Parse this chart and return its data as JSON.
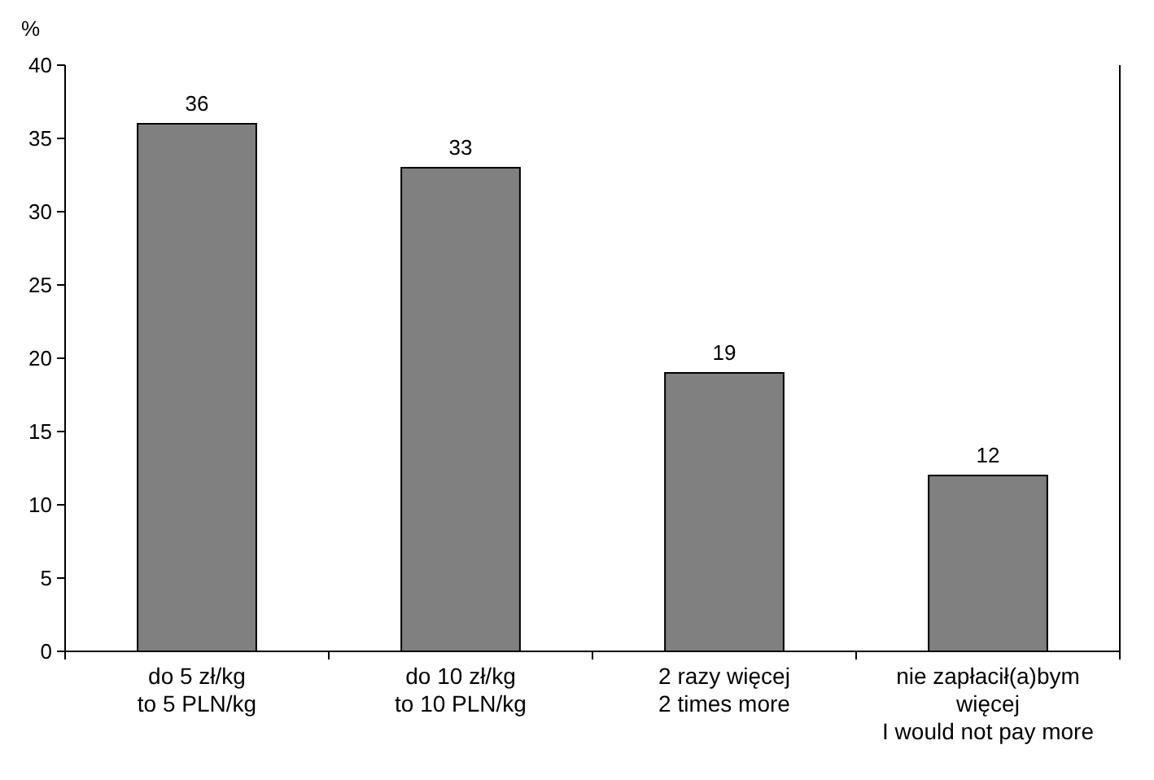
{
  "chart_data": {
    "type": "bar",
    "ylabel": "%",
    "categories": [
      "do 5 zł/kg\nto 5 PLN/kg",
      "do 10 zł/kg\nto 10 PLN/kg",
      "2 razy więcej\n2 times more",
      "nie zapłacił(a)bym\nwięcej\nI would not pay more"
    ],
    "values": [
      36,
      33,
      19,
      12
    ],
    "color": "#808080",
    "ylim": [
      0,
      40
    ],
    "yticks": [
      0,
      5,
      10,
      15,
      20,
      25,
      30,
      35,
      40
    ],
    "grid": false,
    "data_labels": true
  }
}
